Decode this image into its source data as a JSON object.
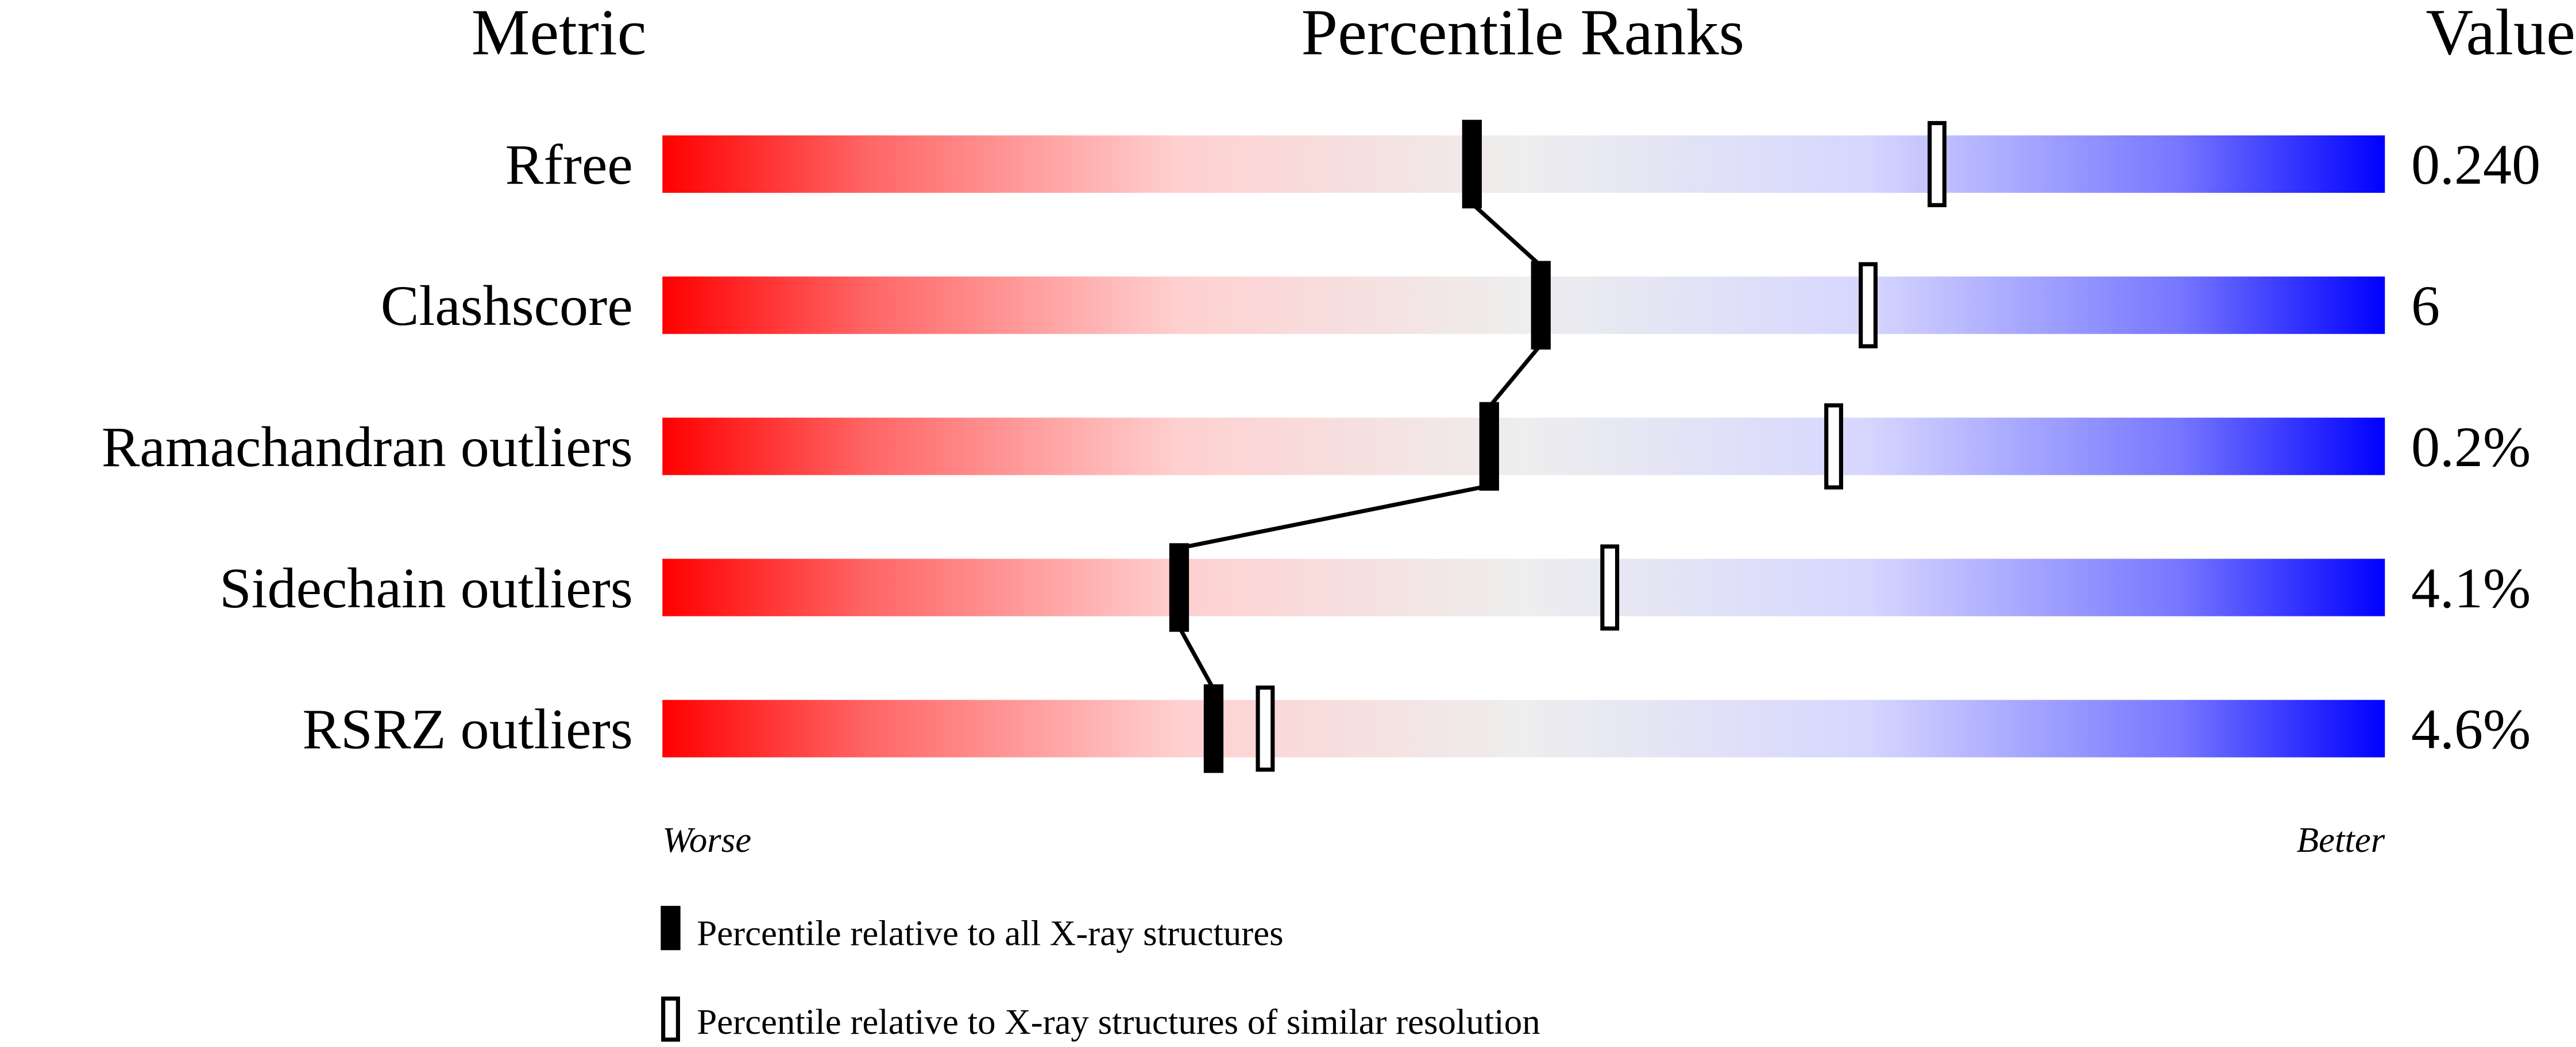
{
  "chart_data": {
    "type": "percentile-bar",
    "headers": {
      "metric": "Metric",
      "ranks": "Percentile Ranks",
      "value": "Value"
    },
    "xlim": [
      0,
      100
    ],
    "axis_labels": {
      "left": "Worse",
      "right": "Better"
    },
    "gradient_colors": {
      "worse": "#ff0000",
      "middle": "#eeeeee",
      "better": "#0000ff"
    },
    "metrics": [
      {
        "name": "Rfree",
        "value": "0.240",
        "percentile_all": 47,
        "percentile_similar": 74
      },
      {
        "name": "Clashscore",
        "value": "6",
        "percentile_all": 51,
        "percentile_similar": 70
      },
      {
        "name": "Ramachandran outliers",
        "value": "0.2%",
        "percentile_all": 48,
        "percentile_similar": 68
      },
      {
        "name": "Sidechain outliers",
        "value": "4.1%",
        "percentile_all": 30,
        "percentile_similar": 55
      },
      {
        "name": "RSRZ outliers",
        "value": "4.6%",
        "percentile_all": 32,
        "percentile_similar": 35
      }
    ],
    "legend": [
      {
        "marker": "filled",
        "label": "Percentile relative to all X-ray structures"
      },
      {
        "marker": "open",
        "label": "Percentile relative to X-ray structures of similar resolution"
      }
    ]
  }
}
